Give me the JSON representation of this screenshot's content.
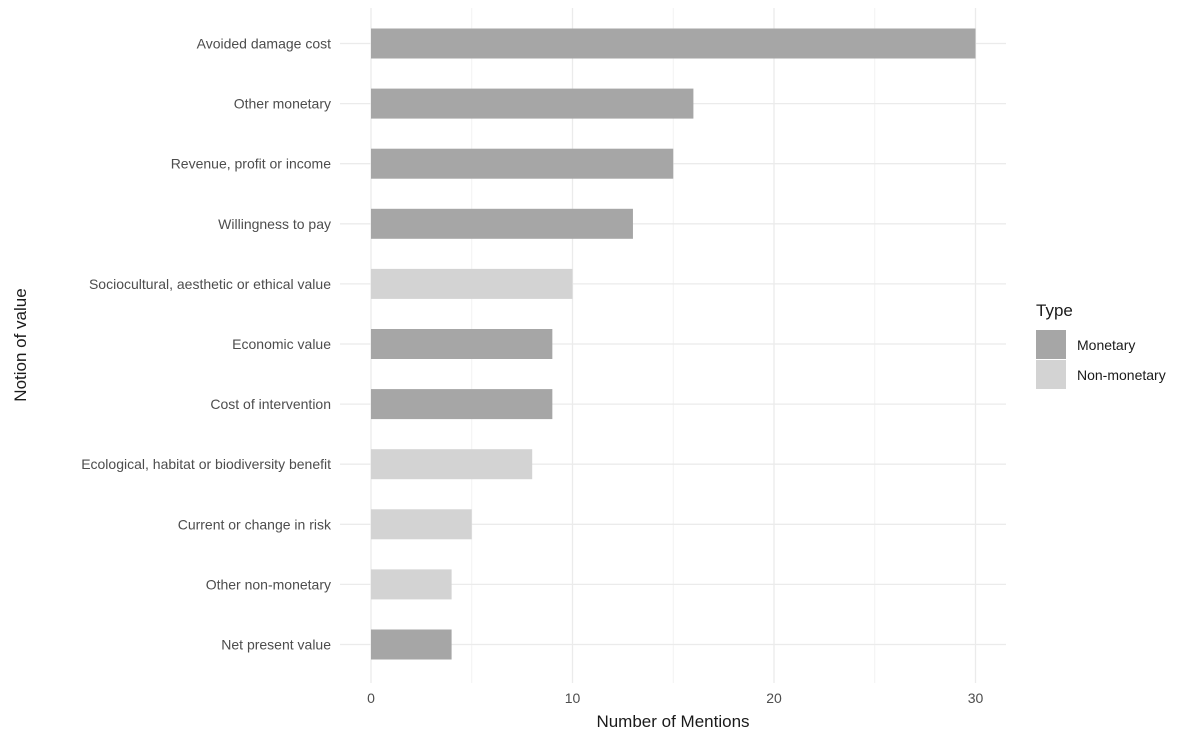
{
  "chart_data": {
    "type": "bar",
    "orientation": "horizontal",
    "title": "",
    "xlabel": "Number of Mentions",
    "ylabel": "Notion of value",
    "xlim": [
      0,
      31.5
    ],
    "xticks": [
      0,
      10,
      20,
      30
    ],
    "x_minor_gridlines": [
      5,
      15,
      25
    ],
    "grid": true,
    "legend": {
      "title": "Type",
      "placement": "right",
      "entries": [
        {
          "label": "Monetary",
          "color": "#a6a6a6"
        },
        {
          "label": "Non-monetary",
          "color": "#d3d3d3"
        }
      ]
    },
    "categories": [
      "Avoided damage cost",
      "Other monetary",
      "Revenue, profit or income",
      "Willingness to pay",
      "Sociocultural, aesthetic or ethical value",
      "Economic value",
      "Cost of intervention",
      "Ecological, habitat or biodiversity benefit",
      "Current or change in risk",
      "Other non-monetary",
      "Net present value"
    ],
    "values": [
      30,
      16,
      15,
      13,
      10,
      9,
      9,
      8,
      5,
      4,
      4
    ],
    "types": [
      "Monetary",
      "Monetary",
      "Monetary",
      "Monetary",
      "Non-monetary",
      "Monetary",
      "Monetary",
      "Non-monetary",
      "Non-monetary",
      "Non-monetary",
      "Monetary"
    ]
  }
}
